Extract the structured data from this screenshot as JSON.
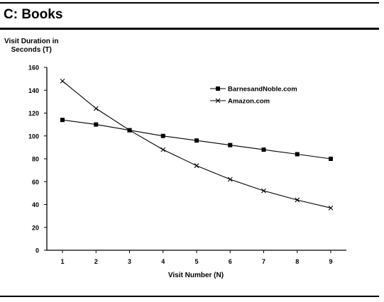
{
  "panel": {
    "title": "C: Books"
  },
  "chart_data": {
    "type": "line",
    "title": "C: Books",
    "ylabel": "Visit Duration in\nSeconds (T)",
    "xlabel": "Visit Number (N)",
    "x": [
      1,
      2,
      3,
      4,
      5,
      6,
      7,
      8,
      9
    ],
    "xticks": [
      "1",
      "2",
      "3",
      "4",
      "5",
      "6",
      "7",
      "8",
      "9"
    ],
    "ylim": [
      0,
      160
    ],
    "yticks": [
      "0",
      "20",
      "40",
      "60",
      "80",
      "100",
      "120",
      "140",
      "160"
    ],
    "grid": false,
    "legend_position": "top-right",
    "series": [
      {
        "name": "BarnesandNoble.com",
        "marker": "square",
        "values": [
          114,
          110,
          105,
          100,
          96,
          92,
          88,
          84,
          80
        ]
      },
      {
        "name": "Amazon.com",
        "marker": "x",
        "values": [
          148,
          124,
          105,
          88,
          74,
          62,
          52,
          44,
          37
        ]
      }
    ]
  }
}
